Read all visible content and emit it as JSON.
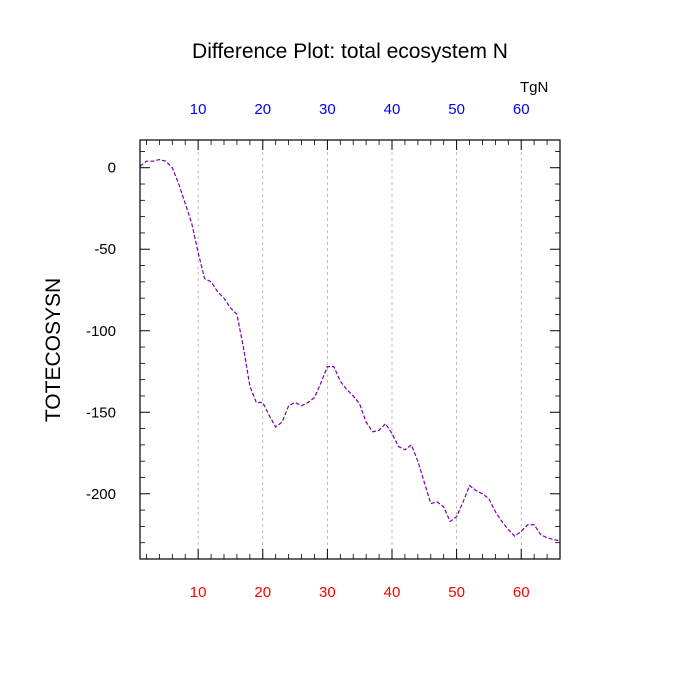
{
  "chart_data": {
    "type": "line",
    "title": "Difference Plot: total ecosystem N",
    "units_label": "TgN",
    "ylabel": "TOTECOSYSN",
    "xlabel": "",
    "xlim": [
      1,
      66
    ],
    "ylim": [
      -240,
      17
    ],
    "x_ticks": [
      10,
      20,
      30,
      40,
      50,
      60
    ],
    "y_ticks": [
      0,
      -50,
      -100,
      -150,
      -200
    ],
    "bottom_tick_color": "#ff0000",
    "top_tick_color": "#0000ff",
    "line_color": "#7a00aa",
    "line_style": "dashed",
    "grid": "vertical-dotted",
    "series": [
      {
        "x": [
          1,
          2,
          3,
          4,
          5,
          6,
          7,
          8,
          9,
          10,
          11,
          12,
          13,
          14,
          15,
          16,
          17,
          18,
          19,
          20,
          21,
          22,
          23,
          24,
          25,
          26,
          27,
          28,
          29,
          30,
          31,
          32,
          33,
          34,
          35,
          36,
          37,
          38,
          39,
          40,
          41,
          42,
          43,
          44,
          45,
          46,
          47,
          48,
          49,
          50,
          51,
          52,
          53,
          54,
          55,
          56,
          57,
          58,
          59,
          60,
          61,
          62,
          63,
          64,
          65,
          66
        ],
        "values": [
          1,
          4,
          4,
          5,
          4,
          0,
          -10,
          -22,
          -34,
          -52,
          -68,
          -70,
          -76,
          -80,
          -86,
          -90,
          -110,
          -134,
          -144,
          -144,
          -152,
          -159,
          -156,
          -146,
          -144,
          -146,
          -144,
          -141,
          -132,
          -122,
          -122,
          -131,
          -136,
          -140,
          -145,
          -156,
          -162,
          -161,
          -157,
          -163,
          -171,
          -173,
          -170,
          -180,
          -193,
          -206,
          -205,
          -208,
          -217,
          -214,
          -205,
          -195,
          -198,
          -200,
          -203,
          -211,
          -217,
          -222,
          -226,
          -223,
          -219,
          -219,
          -225,
          -227,
          -228,
          -229
        ]
      }
    ]
  }
}
